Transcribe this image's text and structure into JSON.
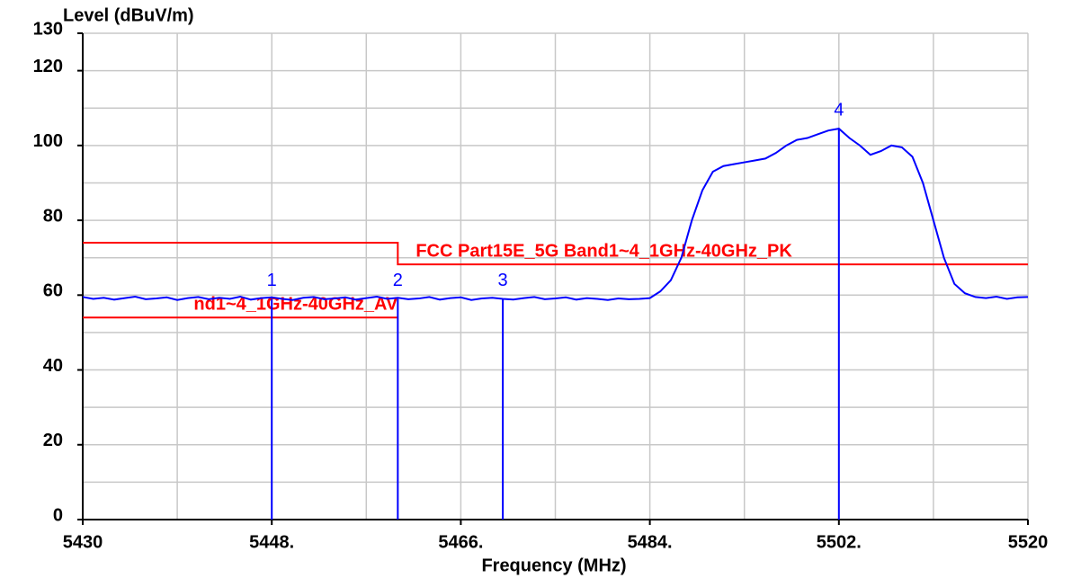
{
  "chart_data": {
    "type": "line",
    "title": "Level (dBuV/m)",
    "x_label": "Frequency (MHz)",
    "xlim": [
      5430,
      5520
    ],
    "ylim": [
      0,
      130
    ],
    "xticks": [
      5430,
      {
        "value": 5448,
        "label": "5448."
      },
      {
        "value": 5466,
        "label": "5466."
      },
      {
        "value": 5484,
        "label": "5484."
      },
      {
        "value": 5502,
        "label": "5502."
      },
      5520
    ],
    "xminor": [
      5439,
      5457,
      5475,
      5493,
      5511
    ],
    "yticks": [
      0,
      20,
      40,
      60,
      80,
      100,
      120,
      130
    ],
    "yminor": [
      10,
      30,
      50,
      70,
      90,
      110
    ],
    "grid": true,
    "color": "#0000ff",
    "x": [
      5430,
      5431,
      5432,
      5433,
      5434,
      5435,
      5436,
      5437,
      5438,
      5439,
      5440,
      5441,
      5442,
      5443,
      5444,
      5445,
      5446,
      5447,
      5448,
      5449,
      5450,
      5451,
      5452,
      5453,
      5454,
      5455,
      5456,
      5457,
      5458,
      5459,
      5460,
      5461,
      5462,
      5463,
      5464,
      5465,
      5466,
      5467,
      5468,
      5469,
      5470,
      5471,
      5472,
      5473,
      5474,
      5475,
      5476,
      5477,
      5478,
      5479,
      5480,
      5481,
      5482,
      5483,
      5484,
      5485,
      5486,
      5487,
      5488,
      5489,
      5490,
      5491,
      5492,
      5493,
      5494,
      5495,
      5496,
      5497,
      5498,
      5499,
      5500,
      5501,
      5502,
      5503,
      5504,
      5505,
      5506,
      5507,
      5508,
      5509,
      5510,
      5511,
      5512,
      5513,
      5514,
      5515,
      5516,
      5517,
      5518,
      5519,
      5520
    ],
    "values": [
      59.5,
      59,
      59.3,
      58.8,
      59.2,
      59.6,
      58.9,
      59.1,
      59.4,
      58.7,
      59.2,
      59.5,
      58.9,
      59.3,
      59,
      59.6,
      58.8,
      59.2,
      59.4,
      59,
      58.7,
      59.3,
      59.5,
      58.9,
      59.1,
      59.4,
      58.8,
      59.2,
      59.6,
      59,
      59.3,
      58.9,
      59.1,
      59.5,
      58.8,
      59.2,
      59.4,
      58.7,
      59.1,
      59.3,
      59,
      58.8,
      59.2,
      59.5,
      58.9,
      59.1,
      59.4,
      58.8,
      59.2,
      59,
      58.7,
      59.1,
      58.9,
      59,
      59.2,
      61,
      64,
      70,
      80,
      88,
      93,
      94.5,
      95,
      95.5,
      96,
      96.5,
      98,
      100,
      101.5,
      102,
      103,
      104,
      104.5,
      102,
      100,
      97.5,
      98.5,
      100,
      99.5,
      97,
      90,
      80,
      70,
      63,
      60.5,
      59.5,
      59.2,
      59.6,
      59,
      59.4,
      59.5
    ],
    "limits": [
      {
        "name": "FCC Part15E_5G Band1~4_1GHz-40GHz_PK",
        "color": "#ff0000",
        "x": [
          5430,
          5460,
          5460,
          5520
        ],
        "values": [
          74,
          74,
          68.2,
          68.2
        ]
      },
      {
        "name": "nd1~4_1GHz-40GHz_AV",
        "color": "#ff0000",
        "x": [
          5430,
          5460
        ],
        "values": [
          54,
          54
        ]
      }
    ],
    "markers": [
      {
        "label": "1",
        "x": 5448,
        "value": 59
      },
      {
        "label": "2",
        "x": 5460,
        "value": 59
      },
      {
        "label": "3",
        "x": 5470,
        "value": 59
      },
      {
        "label": "4",
        "x": 5502,
        "value": 104.5
      }
    ]
  }
}
